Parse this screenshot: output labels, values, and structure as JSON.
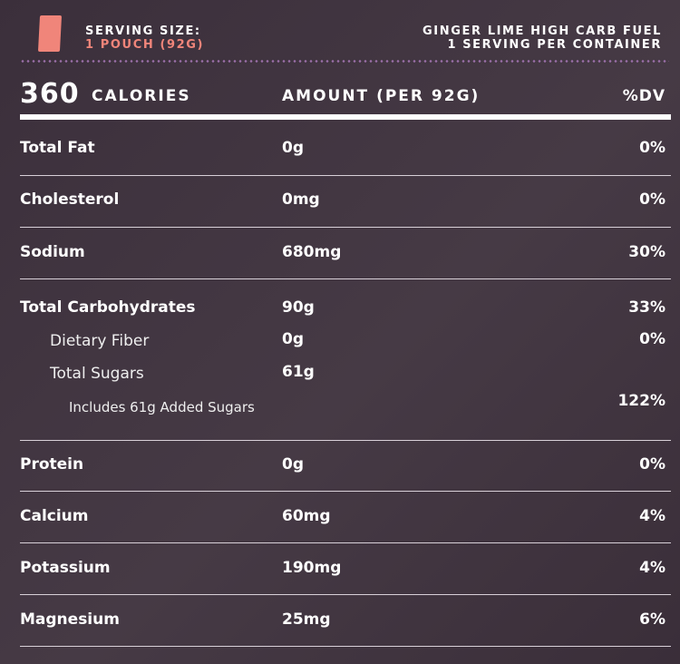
{
  "header": {
    "serving_label": "SERVING SIZE:",
    "serving_value": "1 POUCH (92G)",
    "product": "GINGER LIME HIGH CARB FUEL",
    "servings": "1 SERVING PER CONTAINER"
  },
  "calories": {
    "value": "360",
    "label": "CALORIES",
    "amount_header": "AMOUNT (PER 92G)",
    "dv_header": "%DV"
  },
  "rows": [
    {
      "name": "Total Fat",
      "amount": "0g",
      "dv": "0%"
    },
    {
      "name": "Cholesterol",
      "amount": "0mg",
      "dv": "0%"
    },
    {
      "name": "Sodium",
      "amount": "680mg",
      "dv": "30%"
    },
    {
      "name": "Total Carbohydrates",
      "amount": "90g",
      "dv": "33%"
    },
    {
      "name": "Dietary Fiber",
      "amount": "0g",
      "dv": "0%"
    },
    {
      "name": "Total Sugars",
      "amount": "61g"
    },
    {
      "name": "Includes 61g Added Sugars",
      "dv": "122%"
    },
    {
      "name": "Protein",
      "amount": "0g",
      "dv": "0%"
    },
    {
      "name": "Calcium",
      "amount": "60mg",
      "dv": "4%"
    },
    {
      "name": "Potassium",
      "amount": "190mg",
      "dv": "4%"
    },
    {
      "name": "Magnesium",
      "amount": "25mg",
      "dv": "6%"
    }
  ],
  "colors": {
    "accent": "#f0857a",
    "background": "#3f333f",
    "dots": "#9a6fa8"
  }
}
